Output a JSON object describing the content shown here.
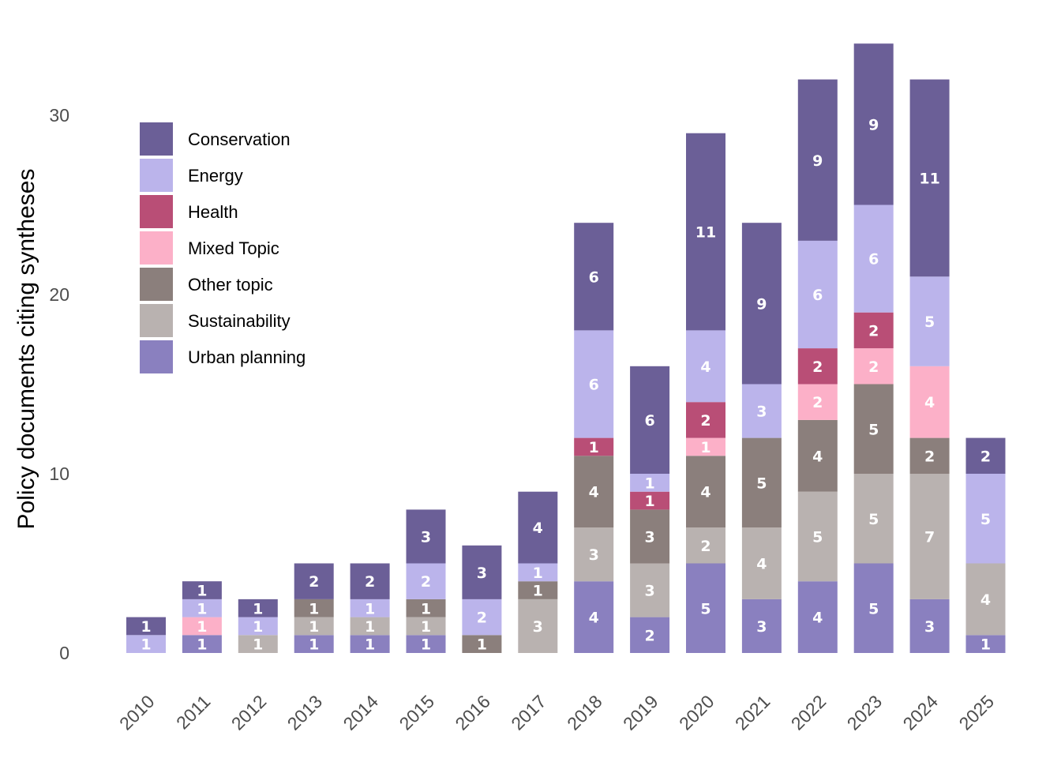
{
  "chart_data": {
    "type": "bar",
    "stacked": true,
    "title": "",
    "xlabel": "",
    "ylabel": "Policy documents citing syntheses",
    "ylim": [
      0,
      34
    ],
    "yticks": [
      0,
      10,
      20,
      30
    ],
    "grid": false,
    "legend_position": "top-left",
    "categories": [
      "2010",
      "2011",
      "2012",
      "2013",
      "2014",
      "2015",
      "2016",
      "2017",
      "2018",
      "2019",
      "2020",
      "2021",
      "2022",
      "2023",
      "2024",
      "2025"
    ],
    "series": [
      {
        "name": "Urban planning",
        "color": "#8a80bf",
        "values": [
          0,
          1,
          0,
          1,
          1,
          1,
          0,
          0,
          4,
          2,
          5,
          3,
          4,
          5,
          3,
          1
        ]
      },
      {
        "name": "Sustainability",
        "color": "#b9b2b0",
        "values": [
          0,
          0,
          1,
          1,
          1,
          1,
          0,
          3,
          3,
          3,
          2,
          4,
          5,
          5,
          7,
          4
        ]
      },
      {
        "name": "Other topic",
        "color": "#8b7f7c",
        "values": [
          0,
          0,
          0,
          1,
          0,
          1,
          1,
          1,
          4,
          3,
          4,
          5,
          4,
          5,
          2,
          0
        ]
      },
      {
        "name": "Mixed Topic",
        "color": "#fcb0c8",
        "values": [
          0,
          1,
          0,
          0,
          0,
          0,
          0,
          0,
          0,
          0,
          1,
          0,
          2,
          2,
          4,
          0
        ]
      },
      {
        "name": "Health",
        "color": "#b94e76",
        "values": [
          0,
          0,
          0,
          0,
          0,
          0,
          0,
          0,
          1,
          1,
          2,
          0,
          2,
          2,
          0,
          0
        ]
      },
      {
        "name": "Energy",
        "color": "#bbb4eb",
        "values": [
          1,
          1,
          1,
          0,
          1,
          2,
          2,
          1,
          6,
          1,
          4,
          3,
          6,
          6,
          5,
          5
        ]
      },
      {
        "name": "Conservation",
        "color": "#6b5f97",
        "values": [
          1,
          1,
          1,
          2,
          2,
          3,
          3,
          4,
          6,
          6,
          11,
          9,
          9,
          9,
          11,
          2
        ]
      }
    ],
    "legend_order": [
      "Conservation",
      "Energy",
      "Health",
      "Mixed Topic",
      "Other topic",
      "Sustainability",
      "Urban planning"
    ]
  }
}
